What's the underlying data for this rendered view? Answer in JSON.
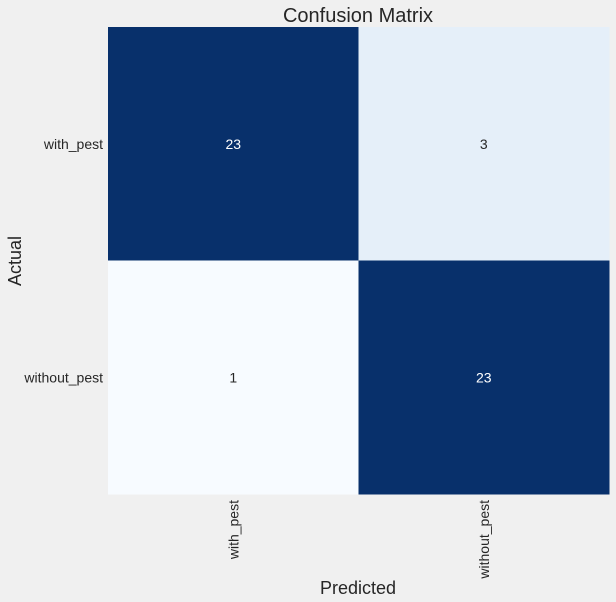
{
  "chart_data": {
    "type": "heatmap",
    "title": "Confusion Matrix",
    "xlabel": "Predicted",
    "ylabel": "Actual",
    "x_categories": [
      "with_pest",
      "without_pest"
    ],
    "y_categories": [
      "with_pest",
      "without_pest"
    ],
    "values": [
      [
        23,
        3
      ],
      [
        1,
        23
      ]
    ],
    "colormap": "Blues",
    "colorbar": false,
    "grid": false
  }
}
